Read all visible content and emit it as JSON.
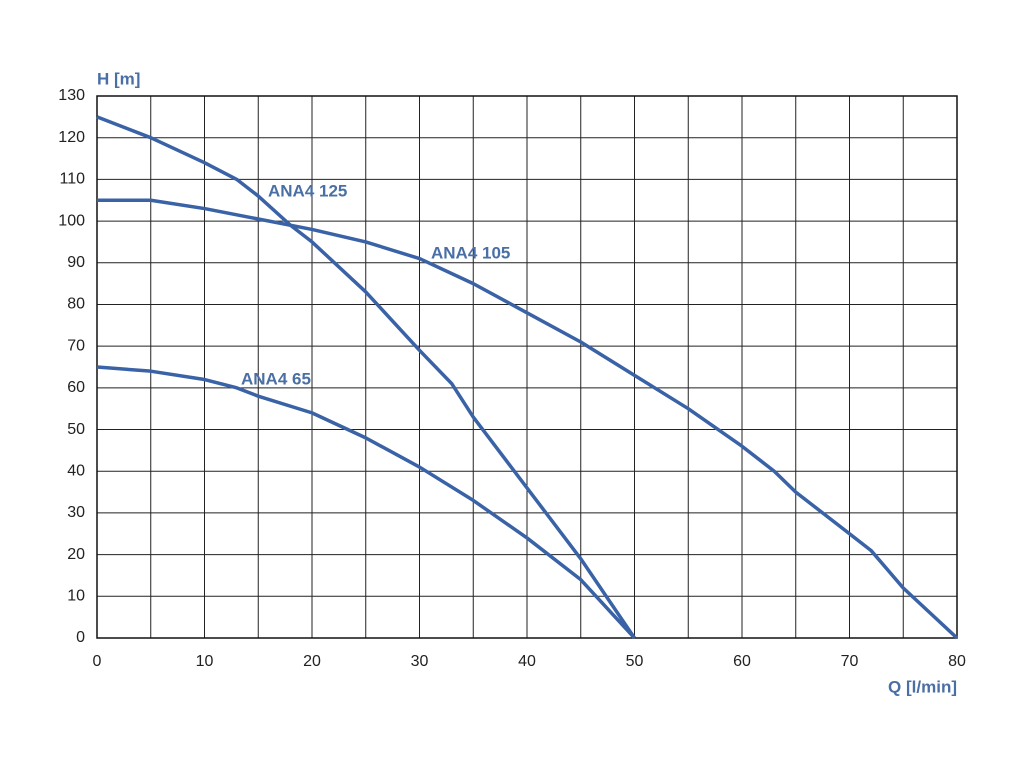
{
  "chart_data": {
    "type": "line",
    "x_label": "Q [l/min]",
    "y_label": "H [m]",
    "xlim": [
      0,
      80
    ],
    "xticks": [
      0,
      10,
      20,
      30,
      40,
      50,
      60,
      70,
      80
    ],
    "x_minor_grid": [
      5,
      15,
      25,
      35,
      45,
      55,
      65,
      75
    ],
    "ylim": [
      0,
      130
    ],
    "yticks": [
      0,
      10,
      20,
      30,
      40,
      50,
      60,
      70,
      80,
      90,
      100,
      110,
      120,
      130
    ],
    "grid": true,
    "series": [
      {
        "name": "ANA4 125",
        "color": "#3a62a6",
        "x": [
          0,
          5,
          10,
          13,
          15,
          18,
          20,
          25,
          30,
          33,
          35,
          40,
          45,
          50
        ],
        "values": [
          125,
          120,
          114,
          110,
          106,
          99,
          95,
          83,
          69,
          61,
          53,
          36,
          19,
          0
        ]
      },
      {
        "name": "ANA4 105",
        "color": "#3a62a6",
        "x": [
          0,
          5,
          10,
          15,
          20,
          25,
          30,
          35,
          40,
          45,
          50,
          55,
          60,
          63,
          65,
          70,
          72,
          75,
          80
        ],
        "values": [
          105,
          105,
          103,
          100.5,
          98,
          95,
          91,
          85,
          78,
          71,
          63,
          55,
          46,
          40,
          35,
          25,
          21,
          12,
          0
        ]
      },
      {
        "name": "ANA4 65",
        "color": "#3a62a6",
        "x": [
          0,
          5,
          10,
          13,
          15,
          20,
          25,
          30,
          35,
          40,
          45,
          50
        ],
        "values": [
          65,
          64,
          62,
          60,
          58,
          54,
          48,
          41,
          33,
          24,
          14,
          0
        ]
      }
    ]
  }
}
